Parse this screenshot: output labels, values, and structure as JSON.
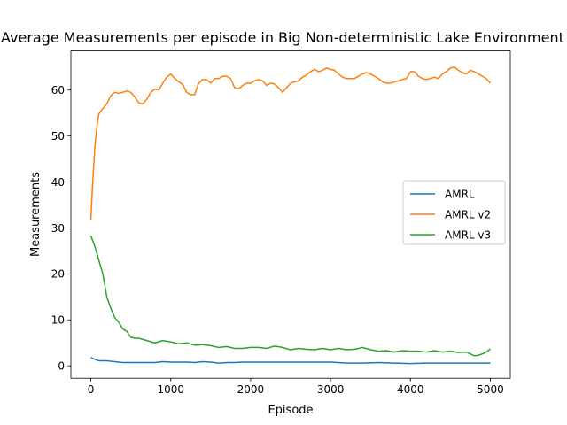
{
  "chart_data": {
    "type": "line",
    "title": "Average Measurements per episode in Big Non-deterministic Lake Environment",
    "xlabel": "Episode",
    "ylabel": "Measurements",
    "xlim": [
      -250,
      5250
    ],
    "ylim": [
      -2.7,
      68.5
    ],
    "xticks": [
      0,
      1000,
      2000,
      3000,
      4000,
      5000
    ],
    "yticks": [
      0,
      10,
      20,
      30,
      40,
      50,
      60
    ],
    "grid": false,
    "legend_position": "center-right",
    "series": [
      {
        "name": "AMRL",
        "color": "#1f77b4",
        "x": [
          0,
          50,
          100,
          150,
          200,
          300,
          400,
          500,
          600,
          700,
          800,
          900,
          1000,
          1100,
          1200,
          1300,
          1400,
          1500,
          1600,
          1700,
          1800,
          1900,
          2000,
          2200,
          2400,
          2600,
          2800,
          3000,
          3200,
          3400,
          3600,
          3800,
          4000,
          4200,
          4400,
          4600,
          4800,
          5000
        ],
        "y": [
          1.8,
          1.4,
          1.1,
          1.1,
          1.1,
          0.9,
          0.7,
          0.7,
          0.7,
          0.7,
          0.7,
          0.9,
          0.8,
          0.8,
          0.8,
          0.7,
          0.9,
          0.8,
          0.6,
          0.7,
          0.7,
          0.8,
          0.8,
          0.8,
          0.8,
          0.8,
          0.8,
          0.8,
          0.6,
          0.6,
          0.7,
          0.6,
          0.5,
          0.6,
          0.6,
          0.6,
          0.6,
          0.6
        ]
      },
      {
        "name": "AMRL v2",
        "color": "#ff7f0e",
        "x": [
          0,
          25,
          50,
          75,
          100,
          150,
          200,
          250,
          300,
          350,
          400,
          450,
          500,
          550,
          600,
          650,
          700,
          750,
          800,
          850,
          900,
          950,
          1000,
          1050,
          1100,
          1150,
          1200,
          1250,
          1300,
          1350,
          1400,
          1450,
          1500,
          1550,
          1600,
          1650,
          1700,
          1750,
          1800,
          1850,
          1900,
          1950,
          2000,
          2050,
          2100,
          2150,
          2200,
          2250,
          2300,
          2350,
          2400,
          2450,
          2500,
          2550,
          2600,
          2650,
          2700,
          2750,
          2800,
          2850,
          2900,
          2950,
          3000,
          3050,
          3100,
          3150,
          3200,
          3250,
          3300,
          3350,
          3400,
          3450,
          3500,
          3550,
          3600,
          3650,
          3700,
          3750,
          3800,
          3850,
          3900,
          3950,
          4000,
          4050,
          4100,
          4150,
          4200,
          4250,
          4300,
          4350,
          4400,
          4450,
          4500,
          4550,
          4600,
          4650,
          4700,
          4750,
          4800,
          4850,
          4900,
          4950,
          5000
        ],
        "y": [
          31.8,
          40.5,
          47.5,
          52.0,
          54.8,
          56.0,
          57.0,
          58.8,
          59.5,
          59.3,
          59.5,
          59.8,
          59.5,
          58.5,
          57.2,
          57.0,
          58.0,
          59.5,
          60.2,
          60.0,
          61.5,
          62.8,
          63.5,
          62.5,
          61.8,
          61.2,
          59.5,
          59.0,
          59.0,
          61.5,
          62.3,
          62.2,
          61.5,
          62.5,
          62.5,
          63.0,
          63.0,
          62.5,
          60.5,
          60.3,
          61.0,
          61.5,
          61.5,
          62.0,
          62.3,
          62.0,
          61.0,
          61.5,
          61.3,
          60.5,
          59.5,
          60.5,
          61.5,
          61.8,
          62.0,
          62.8,
          63.3,
          64.0,
          64.5,
          64.0,
          64.3,
          64.8,
          64.5,
          64.3,
          63.5,
          62.8,
          62.5,
          62.5,
          62.5,
          63.0,
          63.5,
          63.8,
          63.5,
          63.0,
          62.5,
          61.8,
          61.5,
          61.5,
          61.8,
          62.0,
          62.3,
          62.5,
          64.0,
          64.0,
          63.0,
          62.5,
          62.3,
          62.5,
          62.8,
          62.5,
          63.5,
          64.0,
          64.8,
          65.0,
          64.3,
          63.8,
          63.5,
          64.3,
          64.0,
          63.5,
          63.0,
          62.5,
          61.5
        ]
      },
      {
        "name": "AMRL v3",
        "color": "#2ca02c",
        "x": [
          0,
          50,
          100,
          150,
          200,
          250,
          300,
          350,
          400,
          450,
          500,
          550,
          600,
          700,
          800,
          900,
          1000,
          1100,
          1200,
          1300,
          1400,
          1500,
          1600,
          1700,
          1800,
          1900,
          2000,
          2100,
          2200,
          2300,
          2400,
          2500,
          2600,
          2700,
          2800,
          2900,
          3000,
          3100,
          3200,
          3300,
          3400,
          3500,
          3600,
          3700,
          3800,
          3900,
          4000,
          4100,
          4200,
          4300,
          4400,
          4500,
          4600,
          4700,
          4750,
          4800,
          4850,
          4900,
          4950,
          5000
        ],
        "y": [
          28.3,
          26.0,
          23.0,
          20.0,
          15.0,
          12.5,
          10.5,
          9.5,
          8.0,
          7.5,
          6.2,
          6.0,
          6.0,
          5.5,
          5.0,
          5.5,
          5.2,
          4.8,
          5.0,
          4.5,
          4.6,
          4.4,
          4.0,
          4.2,
          3.8,
          3.8,
          4.0,
          4.0,
          3.8,
          4.3,
          4.0,
          3.5,
          3.8,
          3.6,
          3.5,
          3.8,
          3.5,
          3.8,
          3.5,
          3.6,
          4.0,
          3.5,
          3.2,
          3.3,
          3.0,
          3.3,
          3.2,
          3.2,
          3.0,
          3.3,
          3.0,
          3.2,
          2.9,
          3.0,
          2.6,
          2.2,
          2.3,
          2.6,
          3.0,
          3.7
        ]
      }
    ]
  }
}
